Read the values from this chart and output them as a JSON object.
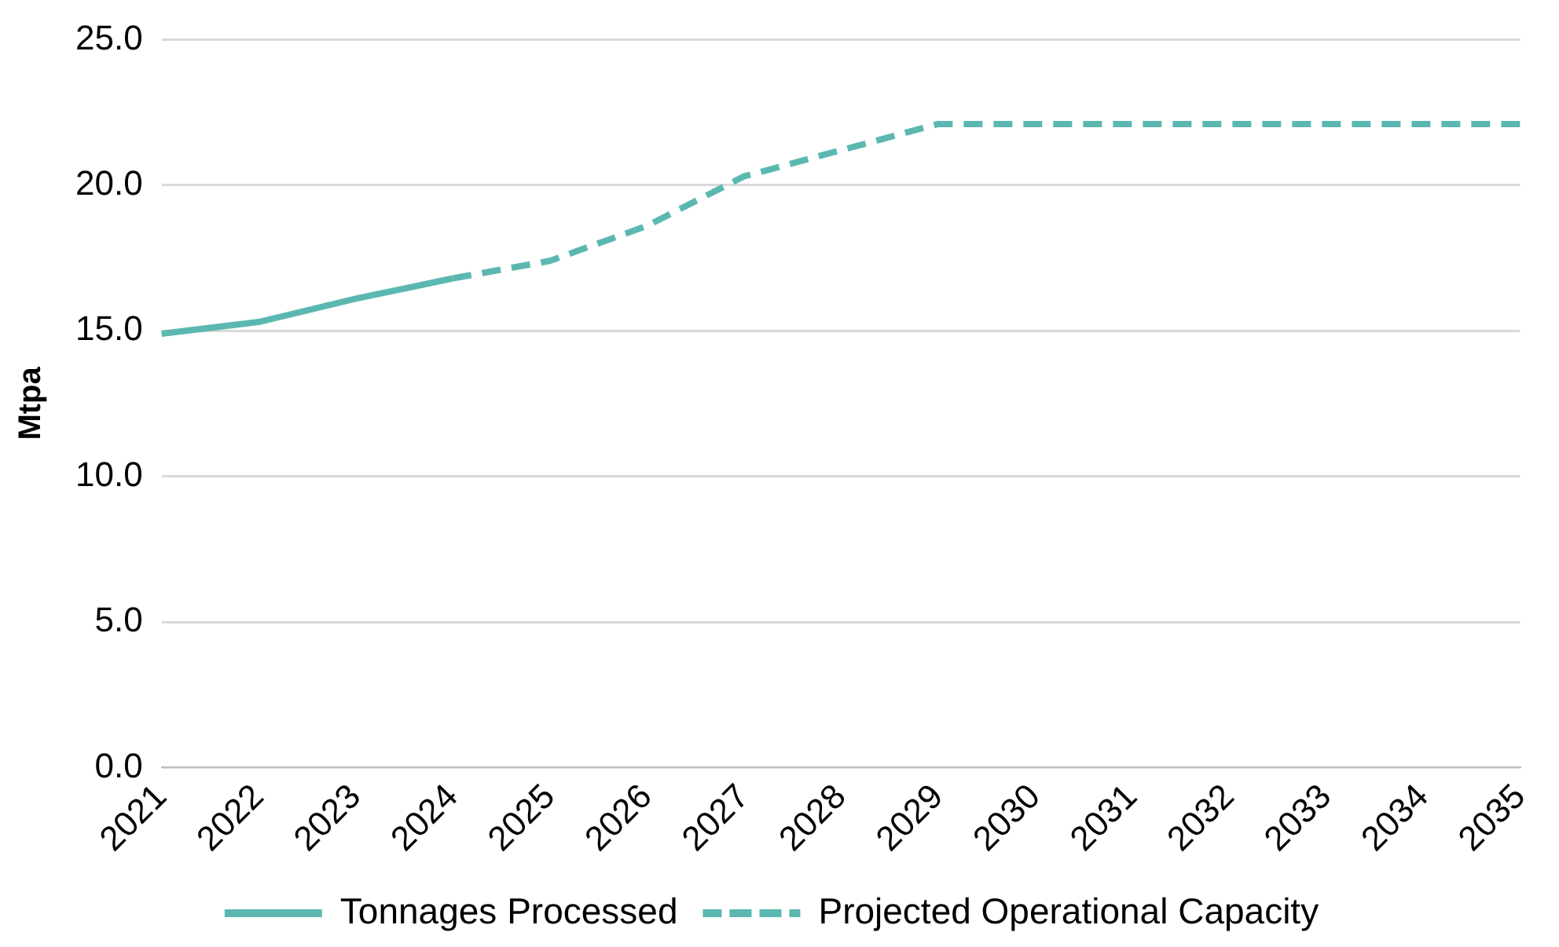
{
  "chart_data": {
    "type": "line",
    "ylabel": "Mtpa",
    "categories": [
      "2021",
      "2022",
      "2023",
      "2024",
      "2025",
      "2026",
      "2027",
      "2028",
      "2029",
      "2030",
      "2031",
      "2032",
      "2033",
      "2034",
      "2035"
    ],
    "series": [
      {
        "name": "Tonnages Processed",
        "color": "#5bb8b0",
        "line_style": "solid",
        "values": [
          14.9,
          15.3,
          16.1,
          16.8,
          null,
          null,
          null,
          null,
          null,
          null,
          null,
          null,
          null,
          null,
          null
        ]
      },
      {
        "name": "Projected Operational Capacity",
        "color": "#5bb8b0",
        "line_style": "dashed",
        "values": [
          null,
          null,
          null,
          16.8,
          17.4,
          18.6,
          20.3,
          21.2,
          22.1,
          22.1,
          22.1,
          22.1,
          22.1,
          22.1,
          22.1
        ]
      }
    ],
    "ylim": [
      0,
      25
    ],
    "yticks": [
      {
        "value": 0,
        "label": "0.0"
      },
      {
        "value": 5,
        "label": "5.0"
      },
      {
        "value": 10,
        "label": "10.0"
      },
      {
        "value": 15,
        "label": "15.0"
      },
      {
        "value": 20,
        "label": "20.0"
      },
      {
        "value": 25,
        "label": "25.0"
      }
    ],
    "grid": "y",
    "legend": "bottom",
    "marker": "none"
  }
}
